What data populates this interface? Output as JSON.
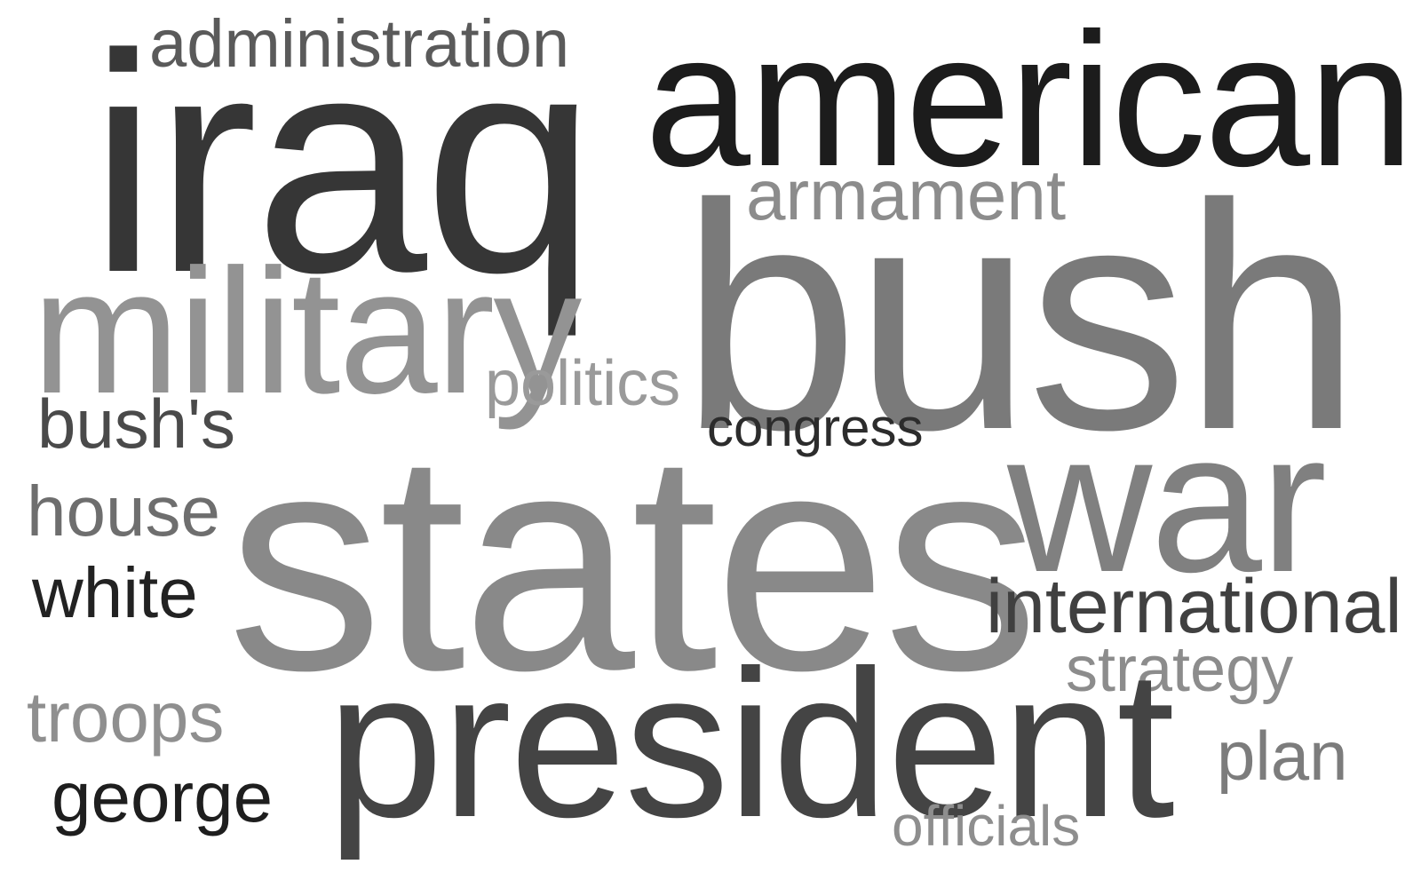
{
  "words": {
    "administration": {
      "text": "administration",
      "color": "#5a5a5a"
    },
    "iraq": {
      "text": "iraq",
      "color": "#363636"
    },
    "american": {
      "text": "american",
      "color": "#1c1c1c"
    },
    "armament": {
      "text": "armament",
      "color": "#8c8c8c"
    },
    "bush": {
      "text": "bush",
      "color": "#7a7a7a"
    },
    "military": {
      "text": "military",
      "color": "#939393"
    },
    "politics": {
      "text": "politics",
      "color": "#9a9a9a"
    },
    "bushs": {
      "text": "bush's",
      "color": "#4a4a4a"
    },
    "congress": {
      "text": "congress",
      "color": "#2c2c2c"
    },
    "states": {
      "text": "states",
      "color": "#898989"
    },
    "war": {
      "text": "war",
      "color": "#808080"
    },
    "house": {
      "text": "house",
      "color": "#6e6e6e"
    },
    "white": {
      "text": "white",
      "color": "#222222"
    },
    "international": {
      "text": "international",
      "color": "#404040"
    },
    "strategy": {
      "text": "strategy",
      "color": "#8c8c8c"
    },
    "troops": {
      "text": "troops",
      "color": "#8f8f8f"
    },
    "president": {
      "text": "president",
      "color": "#444444"
    },
    "plan": {
      "text": "plan",
      "color": "#7c7c7c"
    },
    "george": {
      "text": "george",
      "color": "#1e1e1e"
    },
    "officials": {
      "text": "officials",
      "color": "#8e8e8e"
    }
  },
  "background": "#ffffff"
}
